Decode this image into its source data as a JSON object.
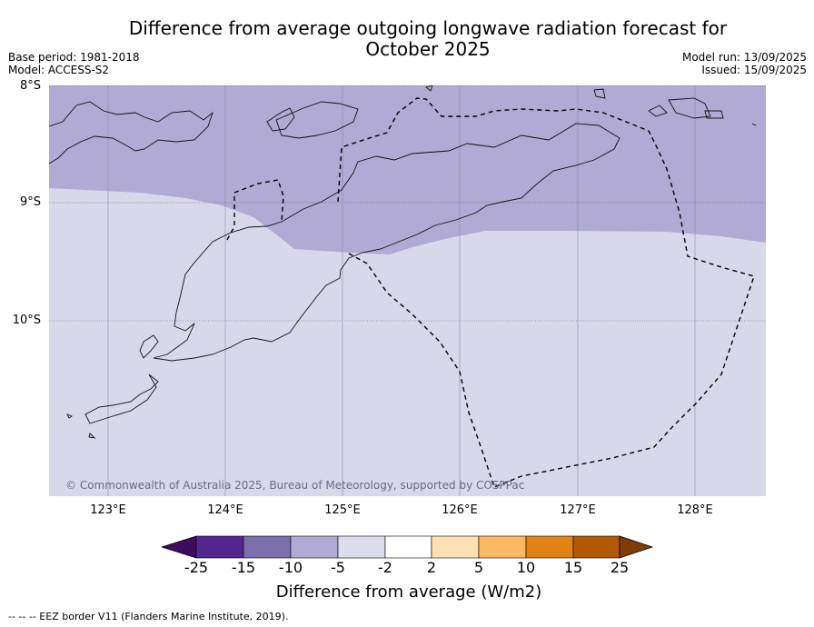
{
  "title": {
    "line1": "Difference from average outgoing longwave radiation forecast for",
    "line2": "October 2025"
  },
  "meta": {
    "base_period": "Base period: 1981-2018",
    "model": "Model: ACCESS-S2",
    "model_run": "Model run: 13/09/2025",
    "issued": "Issued: 15/09/2025"
  },
  "map": {
    "lat_labels": [
      "8°S",
      "9°S",
      "10°S"
    ],
    "lon_labels": [
      "123°E",
      "124°E",
      "125°E",
      "126°E",
      "127°E",
      "128°E"
    ],
    "anomaly_zones": [
      {
        "range": "-10 to -5",
        "color": "#b0aad4"
      },
      {
        "range": "-5 to -2",
        "color": "#d8d8ea"
      }
    ],
    "copyright": "© Commonwealth of Australia 2025, Bureau of Meteorology, supported by COSPPac"
  },
  "colorbar": {
    "ticks": [
      "-25",
      "-15",
      "-10",
      "-5",
      "-2",
      "2",
      "5",
      "10",
      "15",
      "25"
    ],
    "colors": [
      "#3f0b5e",
      "#54278f",
      "#7b70ad",
      "#b0aad4",
      "#dcdcec",
      "#ffffff",
      "#fde0b4",
      "#fdb863",
      "#e08214",
      "#b35806",
      "#7f3b08"
    ],
    "label": "Difference from average (W/m2)"
  },
  "footnote": "--  --  -- EEZ border V11 (Flanders Marine Institute, 2019)."
}
